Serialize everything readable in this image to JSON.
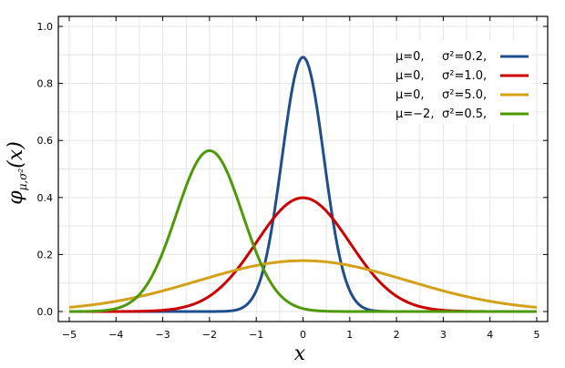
{
  "chart_data": {
    "type": "line",
    "title": "",
    "xlabel": "x",
    "ylabel": "φμ,σ²(x)",
    "ylabel_parts": {
      "main": "φ",
      "sub": "μ,σ²",
      "arg": "(x)"
    },
    "xlim": [
      -5,
      5
    ],
    "ylim": [
      0,
      1.0
    ],
    "x_ticks": [
      -5,
      -4,
      -3,
      -2,
      -1,
      0,
      1,
      2,
      3,
      4,
      5
    ],
    "x_tick_labels": [
      "−5",
      "−4",
      "−3",
      "−2",
      "−1",
      "0",
      "1",
      "2",
      "3",
      "4",
      "5"
    ],
    "y_ticks": [
      0,
      0.2,
      0.4,
      0.6,
      0.8,
      1.0
    ],
    "y_tick_labels": [
      "0.0",
      "0.2",
      "0.4",
      "0.6",
      "0.8",
      "1.0"
    ],
    "grid": true,
    "legend_position": "top-right",
    "series": [
      {
        "name": "μ=0,   σ²=0.2,",
        "mu": 0,
        "sigma2": 0.2,
        "color": "#1f4e8c"
      },
      {
        "name": "μ=0,   σ²=1.0,",
        "mu": 0,
        "sigma2": 1.0,
        "color": "#cc0000"
      },
      {
        "name": "μ=0,   σ²=5.0,",
        "mu": 0,
        "sigma2": 5.0,
        "color": "#d4a017"
      },
      {
        "name": "μ=−2, σ²=0.5,",
        "mu": -2,
        "sigma2": 0.5,
        "color": "#4e9a06"
      }
    ],
    "legend_labels": [
      {
        "mu": "μ=0,",
        "sigma": "σ²=0.2,"
      },
      {
        "mu": "μ=0,",
        "sigma": "σ²=1.0,"
      },
      {
        "mu": "μ=0,",
        "sigma": "σ²=5.0,"
      },
      {
        "mu": "μ=−2,",
        "sigma": "σ²=0.5,"
      }
    ]
  }
}
